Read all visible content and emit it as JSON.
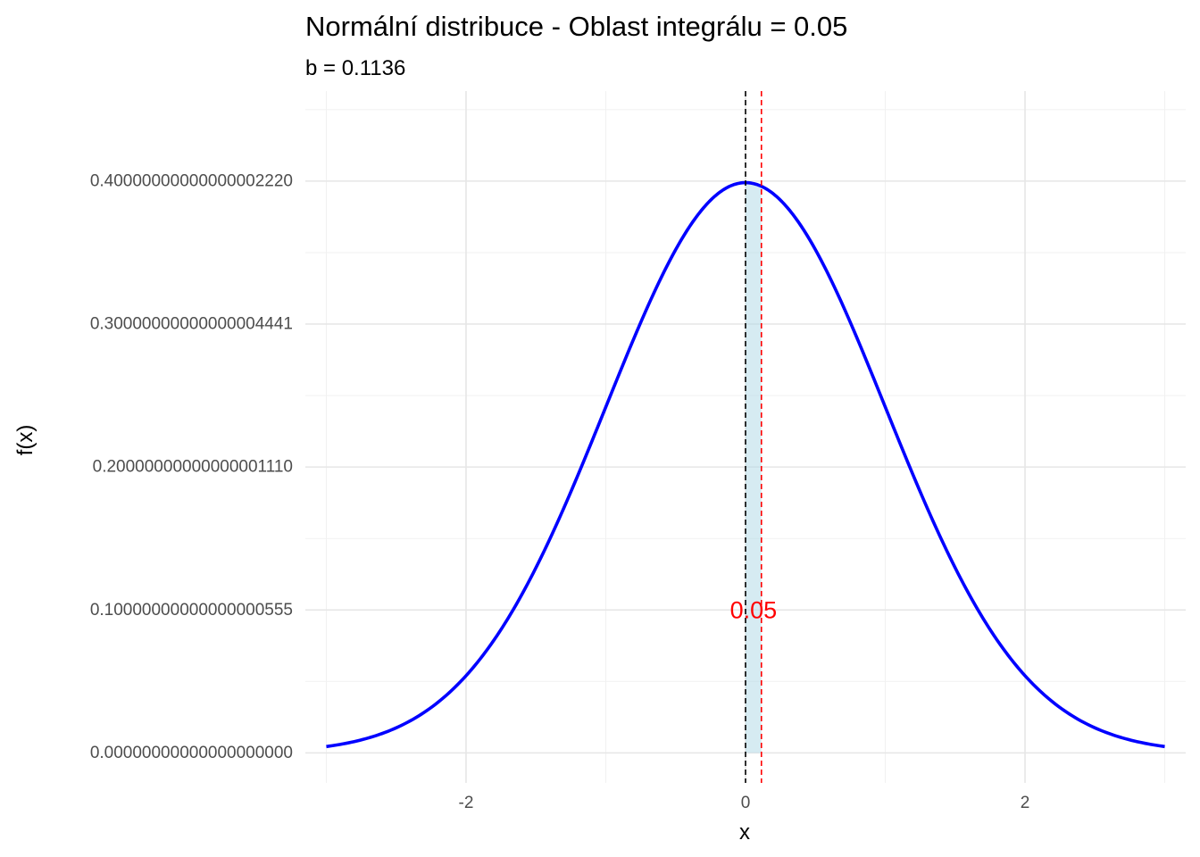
{
  "chart_data": {
    "type": "line",
    "title": "Normální distribuce - Oblast integrálu = 0.05",
    "subtitle": "b = 0.1136",
    "xlabel": "x",
    "ylabel": "f(x)",
    "xlim": [
      -3.15,
      3.15
    ],
    "ylim": [
      -0.021,
      0.463
    ],
    "x_ticks": [
      -2,
      0,
      2
    ],
    "x_tick_labels": [
      "-2",
      "0",
      "2"
    ],
    "x_minor_ticks": [
      -3,
      -1,
      1,
      3
    ],
    "y_ticks": [
      0.0,
      0.1,
      0.2,
      0.3,
      0.4
    ],
    "y_tick_labels": [
      "0.00000000000000000000",
      "0.10000000000000000555",
      "0.20000000000000001110",
      "0.30000000000000004441",
      "0.40000000000000002220"
    ],
    "y_minor_ticks": [
      0.05,
      0.15,
      0.25,
      0.35,
      0.45
    ],
    "grid": true,
    "series": [
      {
        "color": "#0000ff",
        "function": "normal_pdf",
        "mean": 0,
        "sd": 1,
        "x_range": [
          -3,
          3
        ]
      }
    ],
    "shaded_area": {
      "from": 0,
      "to": 0.1136,
      "color": "#add8e6",
      "opacity": 0.5
    },
    "vlines": [
      {
        "x": 0,
        "color": "#000000",
        "dashed": true
      },
      {
        "x": 0.1136,
        "color": "#ff0000",
        "dashed": true
      }
    ],
    "annotation": {
      "text": "0.05",
      "x": 0.0568,
      "y": 0.1,
      "color": "#ff0000"
    }
  }
}
